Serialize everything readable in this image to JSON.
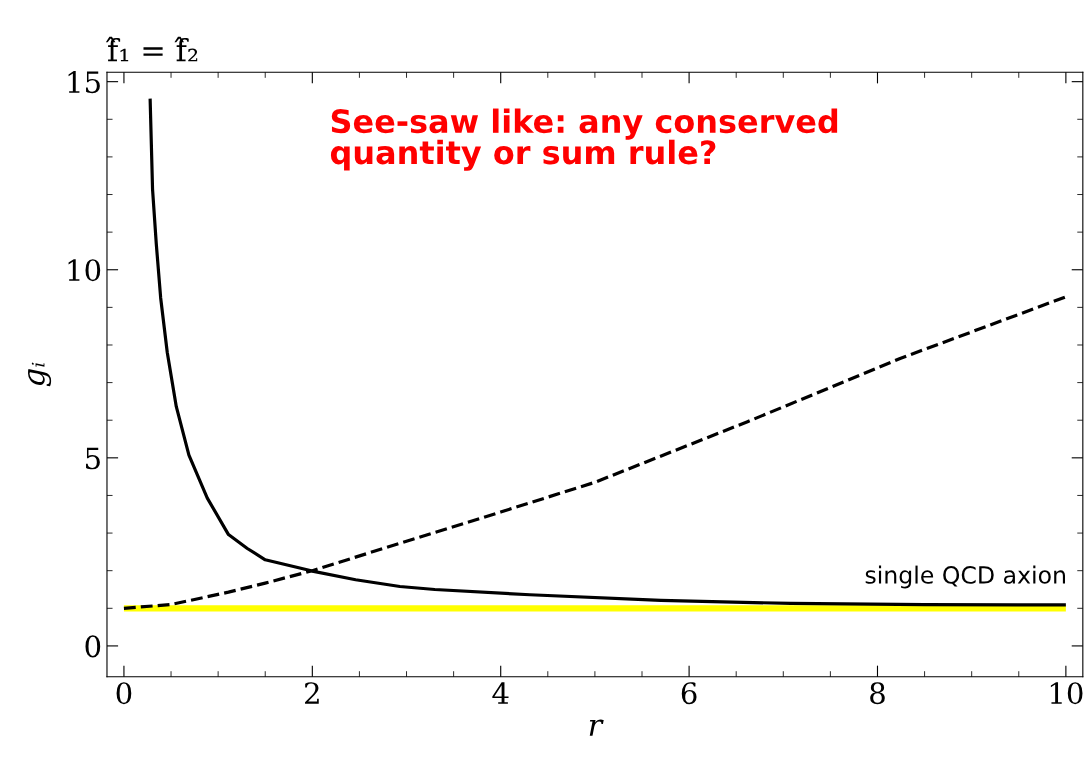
{
  "chart_data": {
    "type": "line",
    "title": "f̂₁ = f̂₂",
    "xlabel": "r",
    "ylabel": "gᵢ",
    "xlim": [
      -0.18,
      10.18
    ],
    "ylim": [
      -0.82,
      15.25
    ],
    "xticks": [
      0,
      2,
      4,
      6,
      8,
      10
    ],
    "yticks": [
      0,
      5,
      10,
      15
    ],
    "grid": false,
    "legend": false,
    "series": [
      {
        "color": "#ffff00",
        "line_style": "solid",
        "x": [
          0,
          10
        ],
        "values": [
          1,
          1
        ]
      },
      {
        "color": "#000000",
        "line_style": "solid",
        "x": [
          0.278,
          0.304,
          0.343,
          0.39,
          0.46,
          0.556,
          0.69,
          0.885,
          1.11,
          1.31,
          1.5,
          2.0,
          2.46,
          2.93,
          3.3,
          4.31,
          5.7,
          7.08,
          8.5,
          10.0
        ],
        "values": [
          14.55,
          12.13,
          10.7,
          9.25,
          7.8,
          6.36,
          5.07,
          3.93,
          2.96,
          2.59,
          2.29,
          1.99,
          1.76,
          1.58,
          1.5,
          1.36,
          1.21,
          1.13,
          1.1,
          1.09
        ]
      },
      {
        "color": "#000000",
        "line_style": "dashed",
        "x": [
          0,
          0.5,
          1.11,
          1.5,
          2.0,
          2.93,
          4.0,
          5.0,
          6.62,
          8.24,
          10.0
        ],
        "values": [
          1.0,
          1.1,
          1.43,
          1.67,
          2.0,
          2.73,
          3.56,
          4.35,
          5.96,
          7.64,
          9.28
        ]
      }
    ],
    "annotations": [
      "See-saw like: any conserved\nquantity or sum rule?",
      "single QCD axion"
    ]
  }
}
